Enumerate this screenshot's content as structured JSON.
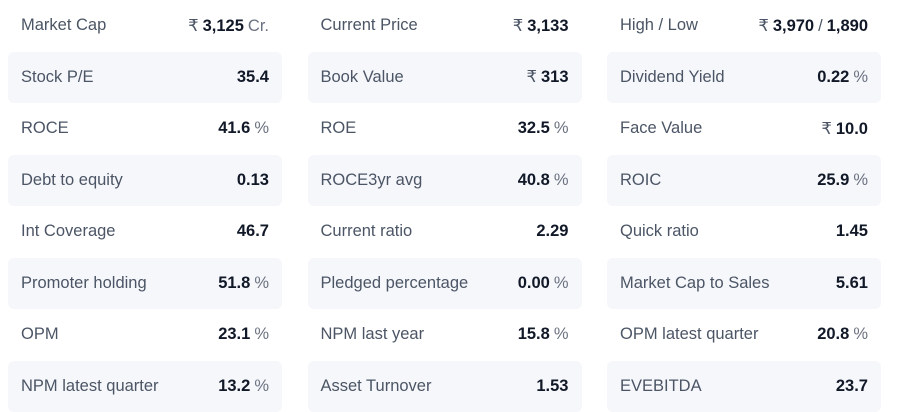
{
  "columns": [
    [
      {
        "label": "Market Cap",
        "prefix": "₹",
        "value": "3,125",
        "unit": "Cr."
      },
      {
        "label": "Stock P/E",
        "prefix": "",
        "value": "35.4",
        "unit": ""
      },
      {
        "label": "ROCE",
        "prefix": "",
        "value": "41.6",
        "unit": "%"
      },
      {
        "label": "Debt to equity",
        "prefix": "",
        "value": "0.13",
        "unit": ""
      },
      {
        "label": "Int Coverage",
        "prefix": "",
        "value": "46.7",
        "unit": ""
      },
      {
        "label": "Promoter holding",
        "prefix": "",
        "value": "51.8",
        "unit": "%"
      },
      {
        "label": "OPM",
        "prefix": "",
        "value": "23.1",
        "unit": "%"
      },
      {
        "label": "NPM latest quarter",
        "prefix": "",
        "value": "13.2",
        "unit": "%"
      }
    ],
    [
      {
        "label": "Current Price",
        "prefix": "₹",
        "value": "3,133",
        "unit": ""
      },
      {
        "label": "Book Value",
        "prefix": "₹",
        "value": "313",
        "unit": ""
      },
      {
        "label": "ROE",
        "prefix": "",
        "value": "32.5",
        "unit": "%"
      },
      {
        "label": "ROCE3yr avg",
        "prefix": "",
        "value": "40.8",
        "unit": "%"
      },
      {
        "label": "Current ratio",
        "prefix": "",
        "value": "2.29",
        "unit": ""
      },
      {
        "label": "Pledged percentage",
        "prefix": "",
        "value": "0.00",
        "unit": "%"
      },
      {
        "label": "NPM last year",
        "prefix": "",
        "value": "15.8",
        "unit": "%"
      },
      {
        "label": "Asset Turnover",
        "prefix": "",
        "value": "1.53",
        "unit": ""
      }
    ],
    [
      {
        "label": "High / Low",
        "prefix": "₹",
        "value": "3,970",
        "separator": "/",
        "value2": "1,890",
        "unit": ""
      },
      {
        "label": "Dividend Yield",
        "prefix": "",
        "value": "0.22",
        "unit": "%"
      },
      {
        "label": "Face Value",
        "prefix": "₹",
        "value": "10.0",
        "unit": ""
      },
      {
        "label": "ROIC",
        "prefix": "",
        "value": "25.9",
        "unit": "%"
      },
      {
        "label": "Quick ratio",
        "prefix": "",
        "value": "1.45",
        "unit": ""
      },
      {
        "label": "Market Cap to Sales",
        "prefix": "",
        "value": "5.61",
        "unit": ""
      },
      {
        "label": "OPM latest quarter",
        "prefix": "",
        "value": "20.8",
        "unit": "%"
      },
      {
        "label": "EVEBITDA",
        "prefix": "",
        "value": "23.7",
        "unit": ""
      }
    ]
  ]
}
